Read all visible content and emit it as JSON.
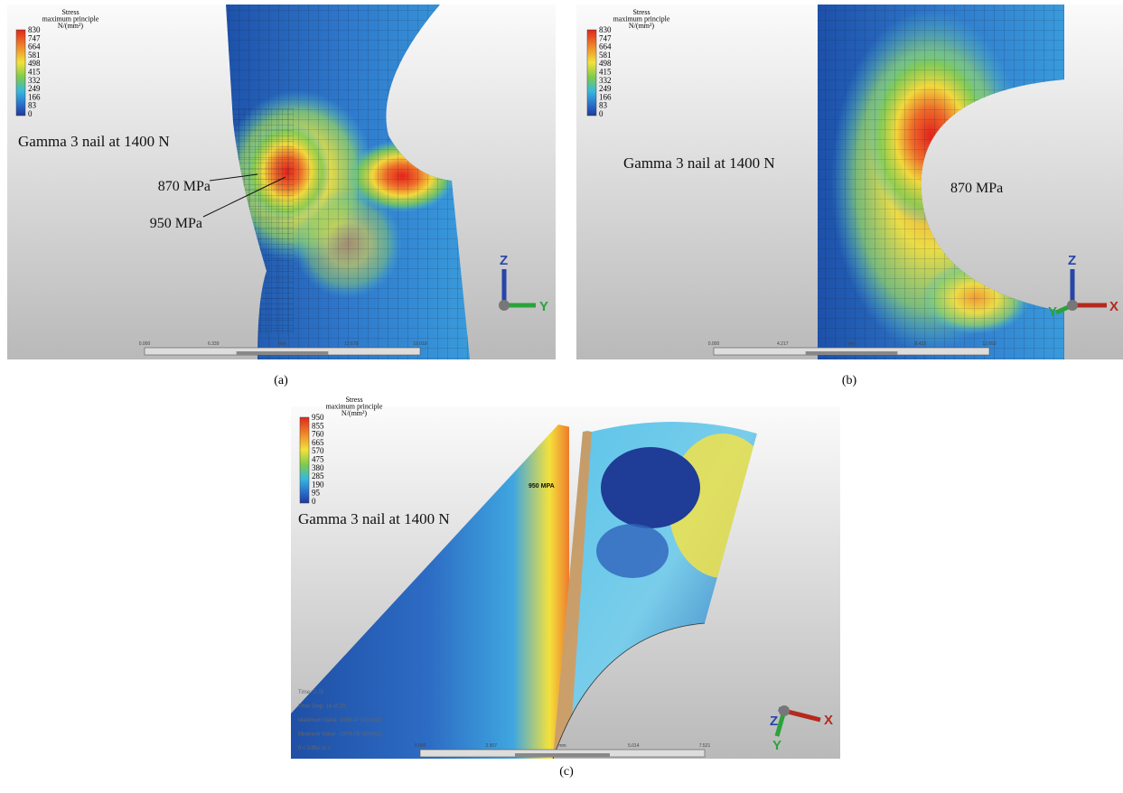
{
  "panels": [
    {
      "label": "(a)",
      "legend": {
        "title": [
          "Stress",
          "maximum principle",
          "N/(mm²)"
        ],
        "ticks": [
          830,
          747,
          664,
          581,
          498,
          415,
          332,
          249,
          166,
          83,
          0
        ]
      },
      "annotations": [
        "Gamma 3 nail at 1400 N",
        "870 MPa",
        "950 MPa"
      ],
      "axes": [
        "Z",
        "Y"
      ],
      "scale": [
        "0.000",
        "6.339",
        "mm",
        "12.679",
        "19.018"
      ]
    },
    {
      "label": "(b)",
      "legend": {
        "title": [
          "Stress",
          "maximum principle",
          "N/(mm²)"
        ],
        "ticks": [
          830,
          747,
          664,
          581,
          498,
          415,
          332,
          249,
          166,
          83,
          0
        ]
      },
      "annotations": [
        "Gamma 3 nail at 1400 N",
        "870 MPa"
      ],
      "axes": [
        "Z",
        "Y",
        "X"
      ],
      "scale": [
        "0.000",
        "4.217",
        "mm",
        "8.433",
        "12.650"
      ]
    },
    {
      "label": "(c)",
      "legend": {
        "title": [
          "Stress",
          "maximum principle",
          "N/(mm²)"
        ],
        "ticks": [
          950,
          855,
          760,
          665,
          570,
          475,
          380,
          285,
          190,
          95,
          0
        ]
      },
      "annotations": [
        "Gamma 3 nail at 1400 N",
        "950 MPA"
      ],
      "axes": [
        "Z",
        "X",
        "Y"
      ],
      "scale": [
        "0.000",
        "2.507",
        "mm",
        "5.014",
        "7.521"
      ],
      "status": [
        "Time: 0.75",
        "Time Step: 14 of 20",
        "Maximum Value: 2069.47 N/(mm2)",
        "Minimum Value: -2976.05 N/(mm2)",
        "0 < Differ to >"
      ]
    }
  ]
}
